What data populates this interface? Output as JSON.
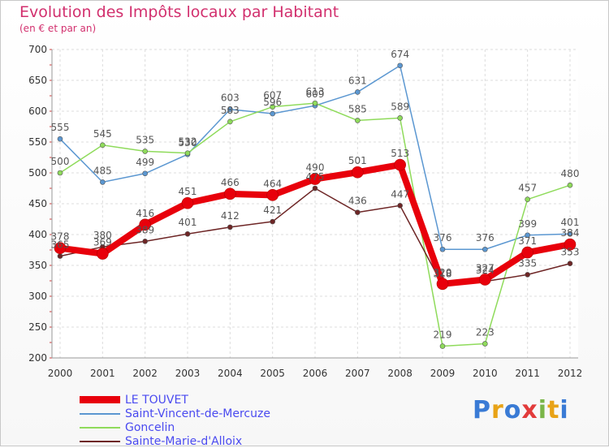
{
  "header": {
    "title": "Evolution des Impôts locaux par Habitant",
    "subtitle": "(en € et par an)"
  },
  "brand": {
    "letters": [
      "P",
      "r",
      "o",
      "x",
      "i",
      "t",
      "i"
    ],
    "colors": [
      "#3a7bd5",
      "#e8a317",
      "#3a7bd5",
      "#e23b3b",
      "#7ab648",
      "#e8a317",
      "#3a7bd5"
    ]
  },
  "chart_data": {
    "type": "line",
    "title": "Evolution des Impôts locaux par Habitant",
    "subtitle": "(en € et par an)",
    "xlabel": "",
    "ylabel": "",
    "ylim": [
      200,
      700
    ],
    "yticks": [
      200,
      250,
      300,
      350,
      400,
      450,
      500,
      550,
      600,
      650,
      700
    ],
    "x": [
      "2000",
      "2001",
      "2002",
      "2003",
      "2004",
      "2005",
      "2006",
      "2007",
      "2008",
      "2009",
      "2010",
      "2011",
      "2012"
    ],
    "grid": true,
    "legend_position": "bottom-left",
    "series": [
      {
        "name": "LE TOUVET",
        "color": "#e8000b",
        "values": [
          378,
          369,
          416,
          451,
          466,
          464,
          490,
          501,
          513,
          320,
          327,
          371,
          384
        ],
        "labels": [
          "378",
          "369",
          "416",
          "451",
          "466",
          "464",
          "490",
          "501",
          "513",
          "320",
          "327",
          "371",
          "384"
        ],
        "width": 8
      },
      {
        "name": "Saint-Vincent-de-Mercuze",
        "color": "#5b97d1",
        "values": [
          555,
          485,
          499,
          530,
          603,
          596,
          609,
          631,
          674,
          376,
          376,
          399,
          401
        ],
        "labels": [
          "555",
          "485",
          "499",
          "530",
          "603",
          "596",
          "609",
          "631",
          "674",
          "376",
          "376",
          "399",
          "401"
        ],
        "width": 1.5
      },
      {
        "name": "Goncelin",
        "color": "#8fdb5b",
        "values": [
          500,
          545,
          535,
          532,
          583,
          607,
          613,
          585,
          589,
          219,
          223,
          457,
          480
        ],
        "labels": [
          "500",
          "545",
          "535",
          "532",
          "583",
          "607",
          "613",
          "585",
          "589",
          "219",
          "223",
          "457",
          "480"
        ],
        "width": 1.5
      },
      {
        "name": "Sainte-Marie-d'Alloix",
        "color": "#6e2626",
        "values": [
          365,
          380,
          389,
          401,
          412,
          421,
          475,
          436,
          447,
          318,
          324,
          335,
          353
        ],
        "labels": [
          "365",
          "380",
          "389",
          "401",
          "412",
          "421",
          "475",
          "436",
          "447",
          "318",
          "324",
          "335",
          "353"
        ],
        "width": 1.5
      }
    ]
  }
}
